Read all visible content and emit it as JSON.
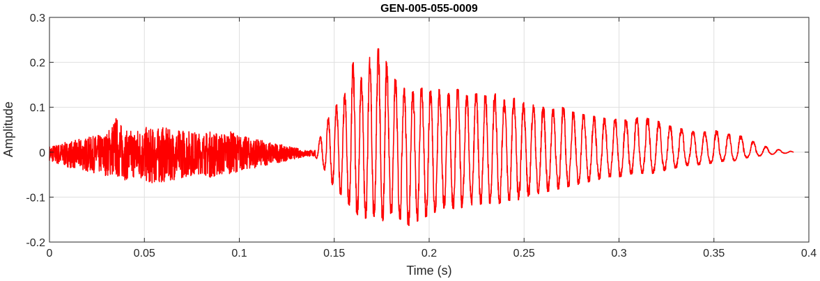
{
  "chart_data": {
    "type": "line",
    "title": "GEN-005-055-0009",
    "xlabel": "Time (s)",
    "ylabel": "Amplitude",
    "xlim": [
      0,
      0.4
    ],
    "ylim": [
      -0.2,
      0.3
    ],
    "grid": true,
    "legend": "none",
    "x_ticks": [
      0,
      0.05,
      0.1,
      0.15,
      0.2,
      0.25,
      0.3,
      0.35,
      0.4
    ],
    "x_tick_labels": [
      "0",
      "0.05",
      "0.1",
      "0.15",
      "0.2",
      "0.25",
      "0.3",
      "0.35",
      "0.4"
    ],
    "y_ticks": [
      -0.2,
      -0.1,
      0,
      0.1,
      0.2,
      0.3
    ],
    "y_tick_labels": [
      "-0.2",
      "-0.1",
      "0",
      "0.1",
      "0.2",
      "0.3"
    ],
    "series": [
      {
        "color": "#ff0000",
        "x": [
          0,
          0.005,
          0.01,
          0.015,
          0.02,
          0.025,
          0.03,
          0.035,
          0.04,
          0.045,
          0.05,
          0.055,
          0.06,
          0.065,
          0.07,
          0.075,
          0.08,
          0.085,
          0.09,
          0.095,
          0.1,
          0.105,
          0.11,
          0.115,
          0.12,
          0.125,
          0.13,
          0.135,
          0.14,
          0.145,
          0.15,
          0.155,
          0.16,
          0.165,
          0.17,
          0.175,
          0.18,
          0.185,
          0.19,
          0.195,
          0.2,
          0.205,
          0.21,
          0.215,
          0.22,
          0.225,
          0.23,
          0.235,
          0.24,
          0.245,
          0.25,
          0.255,
          0.26,
          0.265,
          0.27,
          0.275,
          0.28,
          0.285,
          0.29,
          0.295,
          0.3,
          0.305,
          0.31,
          0.315,
          0.32,
          0.325,
          0.33,
          0.335,
          0.34,
          0.345,
          0.35,
          0.355,
          0.36,
          0.365,
          0.37,
          0.375,
          0.38,
          0.385,
          0.39,
          0.392
        ],
        "upper": [
          0.015,
          0.02,
          0.025,
          0.03,
          0.035,
          0.04,
          0.045,
          0.085,
          0.05,
          0.055,
          0.06,
          0.055,
          0.06,
          0.05,
          0.055,
          0.05,
          0.045,
          0.05,
          0.045,
          0.05,
          0.04,
          0.035,
          0.03,
          0.025,
          0.02,
          0.015,
          0.01,
          0.005,
          0.005,
          0.06,
          0.1,
          0.12,
          0.2,
          0.16,
          0.23,
          0.23,
          0.17,
          0.15,
          0.13,
          0.145,
          0.135,
          0.14,
          0.13,
          0.14,
          0.125,
          0.13,
          0.125,
          0.13,
          0.115,
          0.12,
          0.11,
          0.105,
          0.1,
          0.095,
          0.1,
          0.09,
          0.085,
          0.08,
          0.08,
          0.07,
          0.075,
          0.07,
          0.08,
          0.075,
          0.07,
          0.06,
          0.055,
          0.05,
          0.045,
          0.045,
          0.05,
          0.04,
          0.04,
          0.035,
          0.025,
          0.015,
          0.01,
          0.005,
          0.003,
          0.0
        ],
        "lower": [
          -0.02,
          -0.03,
          -0.035,
          -0.04,
          -0.045,
          -0.05,
          -0.055,
          -0.06,
          -0.065,
          -0.06,
          -0.07,
          -0.075,
          -0.07,
          -0.065,
          -0.06,
          -0.055,
          -0.05,
          -0.06,
          -0.055,
          -0.05,
          -0.045,
          -0.04,
          -0.035,
          -0.03,
          -0.025,
          -0.02,
          -0.015,
          -0.01,
          -0.01,
          -0.04,
          -0.08,
          -0.1,
          -0.13,
          -0.15,
          -0.14,
          -0.155,
          -0.135,
          -0.15,
          -0.165,
          -0.15,
          -0.14,
          -0.13,
          -0.12,
          -0.13,
          -0.115,
          -0.12,
          -0.11,
          -0.12,
          -0.105,
          -0.11,
          -0.1,
          -0.095,
          -0.09,
          -0.085,
          -0.08,
          -0.075,
          -0.07,
          -0.065,
          -0.06,
          -0.055,
          -0.055,
          -0.05,
          -0.045,
          -0.05,
          -0.045,
          -0.04,
          -0.035,
          -0.03,
          -0.03,
          -0.025,
          -0.025,
          -0.02,
          -0.02,
          -0.015,
          -0.01,
          -0.008,
          -0.005,
          -0.003,
          -0.002,
          0.0
        ]
      }
    ]
  }
}
